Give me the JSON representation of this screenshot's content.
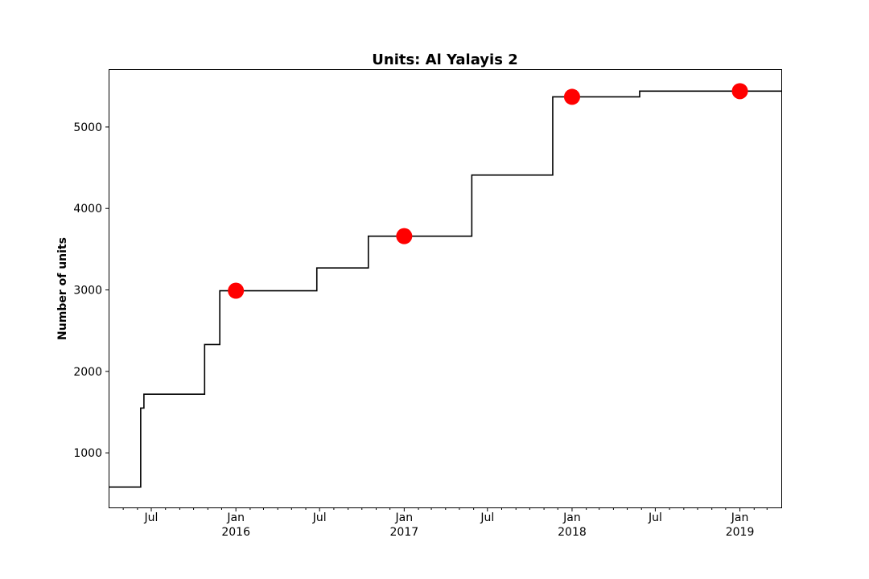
{
  "chart_data": {
    "type": "line",
    "title": "Units: Al Yalayis 2",
    "xlabel": "",
    "ylabel": "Number of units",
    "xlim": [
      "2015-04-01",
      "2019-04-01"
    ],
    "ylim": [
      330,
      5700
    ],
    "grid": false,
    "yticks": [
      1000,
      2000,
      3000,
      4000,
      5000
    ],
    "xticks": [
      {
        "date": "2015-07-01",
        "label": "Jul",
        "sublabel": ""
      },
      {
        "date": "2016-01-01",
        "label": "Jan",
        "sublabel": "2016"
      },
      {
        "date": "2016-07-01",
        "label": "Jul",
        "sublabel": ""
      },
      {
        "date": "2017-01-01",
        "label": "Jan",
        "sublabel": "2017"
      },
      {
        "date": "2017-07-01",
        "label": "Jul",
        "sublabel": ""
      },
      {
        "date": "2018-01-01",
        "label": "Jan",
        "sublabel": "2018"
      },
      {
        "date": "2018-07-01",
        "label": "Jul",
        "sublabel": ""
      },
      {
        "date": "2019-01-01",
        "label": "Jan",
        "sublabel": "2019"
      }
    ],
    "minor_xticks": [
      "2015-05-01",
      "2015-06-01",
      "2015-08-01",
      "2015-09-01",
      "2015-10-01",
      "2015-11-01",
      "2015-12-01",
      "2016-02-01",
      "2016-03-01",
      "2016-04-01",
      "2016-05-01",
      "2016-06-01",
      "2016-08-01",
      "2016-09-01",
      "2016-10-01",
      "2016-11-01",
      "2016-12-01",
      "2017-02-01",
      "2017-03-01",
      "2017-04-01",
      "2017-05-01",
      "2017-06-01",
      "2017-08-01",
      "2017-09-01",
      "2017-10-01",
      "2017-11-01",
      "2017-12-01",
      "2018-02-01",
      "2018-03-01",
      "2018-04-01",
      "2018-05-01",
      "2018-06-01",
      "2018-08-01",
      "2018-09-01",
      "2018-10-01",
      "2018-11-01",
      "2018-12-01",
      "2019-02-01",
      "2019-03-01"
    ],
    "series": [
      {
        "style": "step",
        "color": "#000000",
        "points": [
          {
            "x": "2015-04-01",
            "y": 580
          },
          {
            "x": "2015-06-08",
            "y": 1550
          },
          {
            "x": "2015-06-15",
            "y": 1720
          },
          {
            "x": "2015-10-25",
            "y": 2330
          },
          {
            "x": "2015-11-27",
            "y": 2990
          },
          {
            "x": "2016-06-25",
            "y": 3270
          },
          {
            "x": "2016-10-15",
            "y": 3660
          },
          {
            "x": "2017-05-28",
            "y": 4410
          },
          {
            "x": "2017-11-20",
            "y": 5370
          },
          {
            "x": "2018-05-28",
            "y": 5440
          },
          {
            "x": "2019-04-01",
            "y": 5440
          }
        ]
      },
      {
        "style": "markers",
        "color": "#ff0000",
        "points": [
          {
            "x": "2016-01-01",
            "y": 2990
          },
          {
            "x": "2017-01-01",
            "y": 3660
          },
          {
            "x": "2018-01-01",
            "y": 5370
          },
          {
            "x": "2019-01-01",
            "y": 5440
          }
        ]
      }
    ]
  }
}
